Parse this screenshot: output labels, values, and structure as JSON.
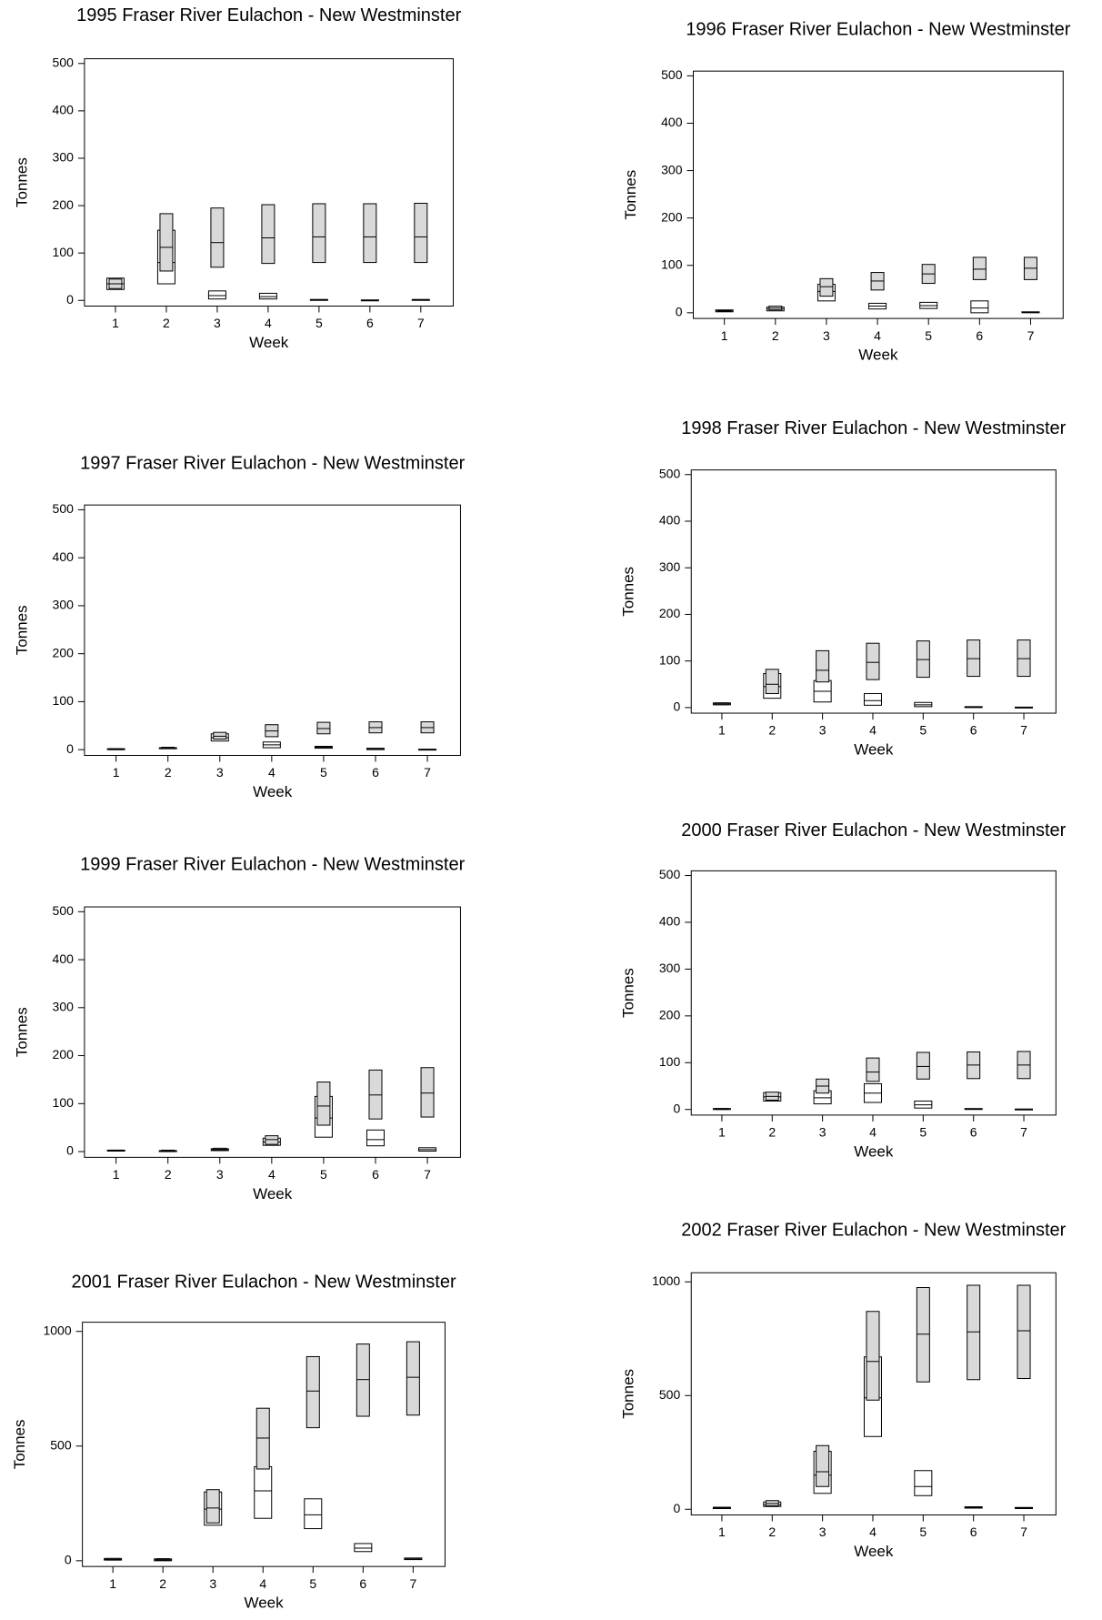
{
  "chart_data": [
    {
      "type": "box",
      "title": "1995 Fraser River Eulachon - New Westminster",
      "x_label": "Week",
      "y_label": "Tonnes",
      "categories": [
        "1",
        "2",
        "3",
        "4",
        "5",
        "6",
        "7"
      ],
      "ylim": [
        -12,
        510
      ],
      "yticks": [
        0,
        100,
        200,
        300,
        400,
        500
      ],
      "series": [
        {
          "color": "#ffffff",
          "low": [
            23,
            35,
            3,
            3,
            0,
            0,
            0
          ],
          "mid": [
            35,
            80,
            10,
            8,
            1,
            0,
            1
          ],
          "high": [
            47,
            148,
            20,
            15,
            2,
            1,
            2
          ]
        },
        {
          "color": "#d9d9d9",
          "low": [
            25,
            62,
            70,
            78,
            80,
            80,
            80
          ],
          "mid": [
            35,
            112,
            122,
            132,
            134,
            134,
            134
          ],
          "high": [
            45,
            183,
            195,
            202,
            204,
            204,
            205
          ]
        }
      ]
    },
    {
      "type": "box",
      "title": "1996 Fraser River Eulachon - New Westminster",
      "x_label": "Week",
      "y_label": "Tonnes",
      "categories": [
        "1",
        "2",
        "3",
        "4",
        "5",
        "6",
        "7"
      ],
      "ylim": [
        -12,
        510
      ],
      "yticks": [
        0,
        100,
        200,
        300,
        400,
        500
      ],
      "series": [
        {
          "color": "#ffffff",
          "low": [
            2,
            4,
            25,
            8,
            9,
            0,
            0
          ],
          "mid": [
            4,
            8,
            45,
            14,
            15,
            10,
            1
          ],
          "high": [
            6,
            12,
            60,
            20,
            22,
            25,
            2
          ]
        },
        {
          "color": "#d9d9d9",
          "low": [
            3,
            6,
            35,
            48,
            62,
            70,
            70
          ],
          "mid": [
            4,
            10,
            55,
            67,
            82,
            92,
            94
          ],
          "high": [
            5,
            14,
            72,
            85,
            102,
            117,
            117
          ]
        }
      ]
    },
    {
      "type": "box",
      "title": "1997 Fraser River Eulachon - New Westminster",
      "x_label": "Week",
      "y_label": "Tonnes",
      "categories": [
        "1",
        "2",
        "3",
        "4",
        "5",
        "6",
        "7"
      ],
      "ylim": [
        -12,
        510
      ],
      "yticks": [
        0,
        100,
        200,
        300,
        400,
        500
      ],
      "series": [
        {
          "color": "#ffffff",
          "low": [
            0,
            2,
            18,
            4,
            3,
            0,
            0
          ],
          "mid": [
            1,
            3,
            25,
            10,
            5,
            1,
            0
          ],
          "high": [
            2,
            4,
            33,
            16,
            7,
            3,
            1
          ]
        },
        {
          "color": "#d9d9d9",
          "low": [
            0,
            2,
            22,
            27,
            33,
            35,
            35
          ],
          "mid": [
            1,
            3,
            28,
            39,
            44,
            46,
            46
          ],
          "high": [
            2,
            5,
            36,
            52,
            57,
            58,
            58
          ]
        }
      ]
    },
    {
      "type": "box",
      "title": "1998 Fraser River Eulachon - New Westminster",
      "x_label": "Week",
      "y_label": "Tonnes",
      "categories": [
        "1",
        "2",
        "3",
        "4",
        "5",
        "6",
        "7"
      ],
      "ylim": [
        -12,
        510
      ],
      "yticks": [
        0,
        100,
        200,
        300,
        400,
        500
      ],
      "series": [
        {
          "color": "#ffffff",
          "low": [
            6,
            20,
            12,
            5,
            2,
            0,
            0
          ],
          "mid": [
            8,
            45,
            35,
            15,
            6,
            1,
            0
          ],
          "high": [
            10,
            73,
            58,
            30,
            11,
            2,
            1
          ]
        },
        {
          "color": "#d9d9d9",
          "low": [
            6,
            30,
            55,
            60,
            65,
            67,
            67
          ],
          "mid": [
            8,
            50,
            80,
            97,
            103,
            105,
            105
          ],
          "high": [
            10,
            82,
            122,
            138,
            143,
            145,
            145
          ]
        }
      ]
    },
    {
      "type": "box",
      "title": "1999 Fraser River Eulachon - New Westminster",
      "x_label": "Week",
      "y_label": "Tonnes",
      "categories": [
        "1",
        "2",
        "3",
        "4",
        "5",
        "6",
        "7"
      ],
      "ylim": [
        -12,
        510
      ],
      "yticks": [
        0,
        100,
        200,
        300,
        400,
        500
      ],
      "series": [
        {
          "color": "#ffffff",
          "low": [
            1,
            0,
            2,
            13,
            30,
            12,
            1
          ],
          "mid": [
            2,
            1,
            4,
            20,
            70,
            25,
            4
          ],
          "high": [
            3,
            2,
            6,
            28,
            115,
            45,
            8
          ]
        },
        {
          "color": "#d9d9d9",
          "low": [
            1,
            0,
            3,
            15,
            55,
            68,
            72
          ],
          "mid": [
            2,
            1,
            5,
            25,
            95,
            118,
            122
          ],
          "high": [
            3,
            3,
            7,
            33,
            145,
            170,
            175
          ]
        }
      ]
    },
    {
      "type": "box",
      "title": "2000 Fraser River Eulachon - New Westminster",
      "x_label": "Week",
      "y_label": "Tonnes",
      "categories": [
        "1",
        "2",
        "3",
        "4",
        "5",
        "6",
        "7"
      ],
      "ylim": [
        -12,
        510
      ],
      "yticks": [
        0,
        100,
        200,
        300,
        400,
        500
      ],
      "series": [
        {
          "color": "#ffffff",
          "low": [
            0,
            18,
            12,
            15,
            3,
            0,
            0
          ],
          "mid": [
            1,
            27,
            25,
            35,
            10,
            1,
            0
          ],
          "high": [
            2,
            36,
            40,
            55,
            18,
            2,
            1
          ]
        },
        {
          "color": "#d9d9d9",
          "low": [
            0,
            20,
            35,
            60,
            65,
            66,
            66
          ],
          "mid": [
            1,
            28,
            50,
            80,
            92,
            95,
            95
          ],
          "high": [
            2,
            37,
            65,
            110,
            122,
            123,
            124
          ]
        }
      ]
    },
    {
      "type": "box",
      "title": "2001 Fraser River Eulachon - New Westminster",
      "x_label": "Week",
      "y_label": "Tonnes",
      "categories": [
        "1",
        "2",
        "3",
        "4",
        "5",
        "6",
        "7"
      ],
      "ylim": [
        -25,
        1040
      ],
      "yticks": [
        0,
        500,
        1000
      ],
      "series": [
        {
          "color": "#ffffff",
          "low": [
            3,
            0,
            155,
            185,
            140,
            40,
            5
          ],
          "mid": [
            6,
            4,
            225,
            305,
            200,
            55,
            8
          ],
          "high": [
            10,
            8,
            300,
            410,
            270,
            75,
            12
          ]
        },
        {
          "color": "#d9d9d9",
          "low": [
            3,
            2,
            165,
            400,
            580,
            630,
            635
          ],
          "mid": [
            6,
            5,
            230,
            535,
            740,
            790,
            800
          ],
          "high": [
            10,
            9,
            310,
            665,
            890,
            945,
            955
          ]
        }
      ]
    },
    {
      "type": "box",
      "title": "2002 Fraser River Eulachon - New Westminster",
      "x_label": "Week",
      "y_label": "Tonnes",
      "categories": [
        "1",
        "2",
        "3",
        "4",
        "5",
        "6",
        "7"
      ],
      "ylim": [
        -25,
        1040
      ],
      "yticks": [
        0,
        500,
        1000
      ],
      "series": [
        {
          "color": "#ffffff",
          "low": [
            3,
            12,
            70,
            320,
            60,
            5,
            3
          ],
          "mid": [
            6,
            20,
            150,
            490,
            100,
            8,
            5
          ],
          "high": [
            9,
            32,
            255,
            670,
            170,
            11,
            8
          ]
        },
        {
          "color": "#d9d9d9",
          "low": [
            3,
            15,
            100,
            480,
            560,
            570,
            575
          ],
          "mid": [
            6,
            25,
            165,
            650,
            770,
            780,
            785
          ],
          "high": [
            9,
            38,
            280,
            870,
            975,
            985,
            985
          ]
        }
      ]
    }
  ]
}
